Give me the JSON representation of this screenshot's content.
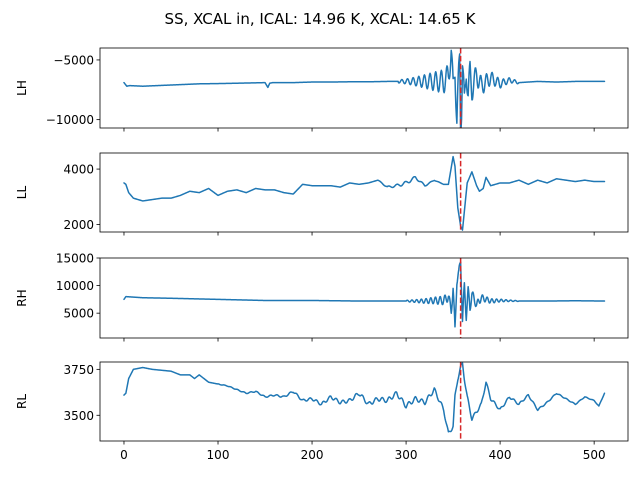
{
  "chart_data": {
    "type": "line",
    "title": "SS, XCAL in, ICAL: 14.96 K, XCAL: 14.65 K",
    "series_color": "#1f77b4",
    "marker_color": "#d62728",
    "marker_x": 358,
    "x_ticks": [
      0,
      100,
      200,
      300,
      400,
      500
    ],
    "x_tick_labels": [
      "0",
      "100",
      "200",
      "300",
      "400",
      "500"
    ],
    "xlim": [
      -25.5,
      536
    ],
    "grid": false,
    "panels": [
      {
        "ylabel": "LH",
        "ylim": [
          -10700,
          -4000
        ],
        "y_ticks": [
          -5000,
          -10000
        ],
        "y_tick_labels": [
          "−5000",
          "−10000"
        ],
        "x": [
          0,
          3,
          6,
          20,
          50,
          80,
          100,
          120,
          150,
          153,
          155,
          158,
          161,
          180,
          200,
          220,
          240,
          260,
          280,
          300,
          320,
          330,
          340,
          345,
          348,
          350,
          352,
          353,
          354,
          356,
          357,
          358,
          359,
          360,
          362,
          364,
          366,
          368,
          370,
          375,
          380,
          390,
          400,
          410,
          420,
          440,
          460,
          480,
          500,
          511
        ],
        "y": [
          -6900,
          -7200,
          -7150,
          -7200,
          -7100,
          -7000,
          -6980,
          -6950,
          -6900,
          -7300,
          -6950,
          -6900,
          -6900,
          -6900,
          -6850,
          -6850,
          -6830,
          -6830,
          -6800,
          -6800,
          -6800,
          -6800,
          -6800,
          -6400,
          -4200,
          -7500,
          -5500,
          -8000,
          -10300,
          -6200,
          -4500,
          -10300,
          -9000,
          -5500,
          -8700,
          -5700,
          -8000,
          -6000,
          -7500,
          -6200,
          -7200,
          -6500,
          -7000,
          -6700,
          -6900,
          -6800,
          -6850,
          -6800,
          -6800,
          -6800
        ],
        "osc": {
          "start": 292,
          "end": 420,
          "center": 355,
          "period": 6,
          "amp": 1100
        }
      },
      {
        "ylabel": "LL",
        "ylim": [
          1730,
          4580
        ],
        "y_ticks": [
          4000,
          2000
        ],
        "y_tick_labels": [
          "4000",
          "2000"
        ],
        "x": [
          0,
          2,
          5,
          10,
          20,
          30,
          40,
          50,
          60,
          70,
          80,
          90,
          100,
          110,
          120,
          130,
          140,
          150,
          160,
          170,
          180,
          190,
          200,
          210,
          220,
          230,
          240,
          250,
          260,
          270,
          280,
          290,
          300,
          310,
          320,
          330,
          340,
          345,
          350,
          352,
          355,
          358,
          360,
          365,
          370,
          375,
          378,
          382,
          385,
          390,
          400,
          410,
          420,
          430,
          440,
          450,
          460,
          470,
          480,
          490,
          500,
          511
        ],
        "y": [
          3500,
          3450,
          3150,
          2950,
          2850,
          2900,
          2950,
          2950,
          3050,
          3200,
          3150,
          3300,
          3050,
          3200,
          3250,
          3150,
          3300,
          3250,
          3250,
          3150,
          3100,
          3450,
          3400,
          3400,
          3400,
          3350,
          3500,
          3450,
          3500,
          3600,
          3350,
          3400,
          3500,
          3700,
          3400,
          3600,
          3450,
          3450,
          4450,
          4100,
          2600,
          1950,
          1800,
          3500,
          3900,
          3400,
          3200,
          3300,
          3700,
          3400,
          3500,
          3500,
          3600,
          3450,
          3600,
          3500,
          3650,
          3600,
          3550,
          3600,
          3550,
          3550
        ],
        "osc": {
          "start": 270,
          "end": 340,
          "center": 300,
          "period": 9,
          "amp": 60
        }
      },
      {
        "ylabel": "RH",
        "ylim": [
          500,
          15000
        ],
        "y_ticks": [
          15000,
          10000,
          5000
        ],
        "y_tick_labels": [
          "15000",
          "10000",
          "5000"
        ],
        "x": [
          0,
          2,
          20,
          50,
          100,
          150,
          200,
          250,
          300,
          320,
          330,
          340,
          345,
          348,
          350,
          352,
          354,
          356,
          358,
          360,
          362,
          364,
          366,
          368,
          370,
          375,
          380,
          390,
          400,
          420,
          450,
          480,
          511
        ],
        "y": [
          7500,
          8000,
          7800,
          7700,
          7500,
          7300,
          7300,
          7200,
          7200,
          7200,
          7300,
          7300,
          8000,
          5500,
          9500,
          2000,
          11000,
          12000,
          14800,
          3500,
          10000,
          4500,
          9000,
          6000,
          8500,
          6500,
          7800,
          7200,
          7300,
          7200,
          7200,
          7250,
          7200
        ],
        "osc": {
          "start": 300,
          "end": 420,
          "center": 355,
          "period": 5,
          "amp": 900
        }
      },
      {
        "ylabel": "RL",
        "ylim": [
          3360,
          3790
        ],
        "y_ticks": [
          3750,
          3500
        ],
        "y_tick_labels": [
          "3750",
          "3500"
        ],
        "x": [
          0,
          2,
          5,
          10,
          20,
          30,
          40,
          50,
          60,
          70,
          75,
          80,
          90,
          100,
          110,
          120,
          130,
          140,
          150,
          160,
          170,
          180,
          190,
          200,
          210,
          220,
          230,
          240,
          250,
          260,
          270,
          280,
          290,
          300,
          310,
          320,
          330,
          340,
          345,
          350,
          352,
          355,
          358,
          360,
          362,
          365,
          370,
          375,
          380,
          385,
          390,
          395,
          400,
          410,
          420,
          430,
          440,
          450,
          460,
          470,
          480,
          490,
          500,
          505,
          511
        ],
        "y": [
          3610,
          3620,
          3700,
          3750,
          3760,
          3750,
          3745,
          3740,
          3720,
          3720,
          3700,
          3720,
          3680,
          3670,
          3660,
          3640,
          3620,
          3630,
          3600,
          3610,
          3600,
          3630,
          3580,
          3590,
          3560,
          3600,
          3570,
          3580,
          3620,
          3560,
          3590,
          3580,
          3620,
          3550,
          3590,
          3570,
          3640,
          3530,
          3400,
          3440,
          3600,
          3700,
          3760,
          3780,
          3700,
          3600,
          3480,
          3520,
          3560,
          3680,
          3590,
          3560,
          3530,
          3600,
          3560,
          3610,
          3530,
          3570,
          3620,
          3590,
          3560,
          3600,
          3580,
          3550,
          3620
        ],
        "osc": {
          "start": 100,
          "end": 511,
          "center": 300,
          "period": 7,
          "amp": 12
        }
      }
    ]
  }
}
